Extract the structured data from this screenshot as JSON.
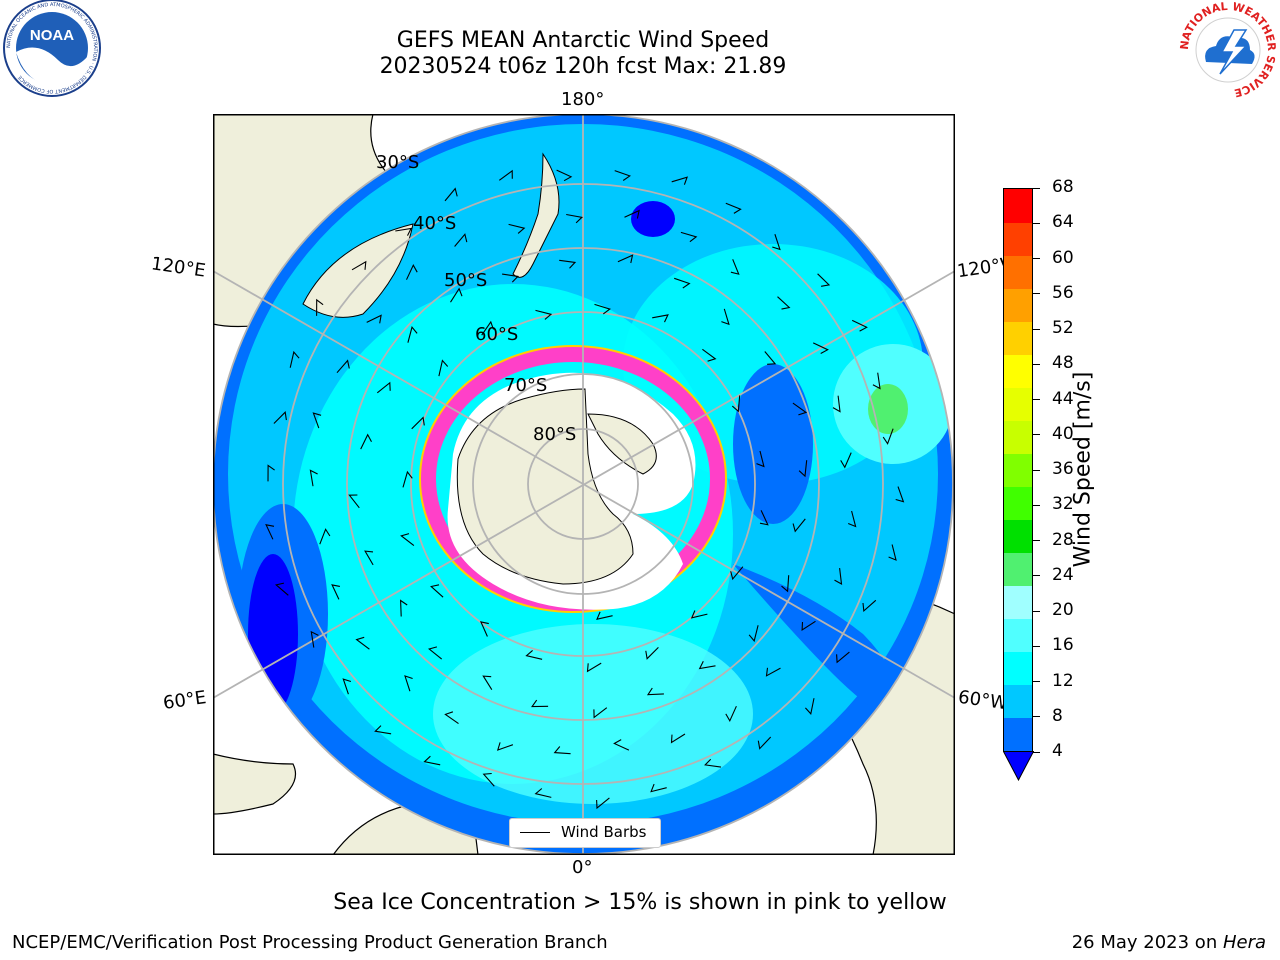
{
  "title": {
    "line1": "GEFS MEAN Antarctic Wind Speed",
    "line2": "20230524 t06z 120h fcst   Max: 21.89"
  },
  "map": {
    "longitude_labels": {
      "top": "180°",
      "bottom": "0°",
      "upper_left": "120°E",
      "upper_right": "120°W",
      "lower_left": "60°E",
      "lower_right": "60°W"
    },
    "latitude_labels": [
      "30°S",
      "40°S",
      "50°S",
      "60°S",
      "70°S",
      "80°S"
    ],
    "legend_label": "Wind Barbs"
  },
  "colorbar": {
    "label": "Wind Speed [m/s]",
    "ticks": [
      "4",
      "8",
      "12",
      "16",
      "20",
      "24",
      "28",
      "32",
      "36",
      "40",
      "44",
      "48",
      "52",
      "56",
      "60",
      "64",
      "68"
    ],
    "colors": [
      "#0000ff",
      "#0070ff",
      "#00c8ff",
      "#00ffff",
      "#50ffff",
      "#a0ffff",
      "#50f070",
      "#00e000",
      "#40ff00",
      "#80ff00",
      "#c8ff00",
      "#e6ff00",
      "#ffff00",
      "#ffd000",
      "#ffa000",
      "#ff7000",
      "#ff4000",
      "#ff0000"
    ]
  },
  "caption": "Sea Ice Concentration > 15% is shown in pink to yellow",
  "footer": {
    "left": "NCEP/EMC/Verification Post Processing Product Generation Branch",
    "right_date": "26 May 2023 on ",
    "right_host": "Hera"
  },
  "logos": {
    "noaa": "NOAA",
    "noaa_ring": "NATIONAL OCEANIC AND ATMOSPHERIC ADMINISTRATION · U.S. DEPARTMENT OF COMMERCE",
    "nws_ring": "NATIONAL WEATHER SERVICE"
  }
}
